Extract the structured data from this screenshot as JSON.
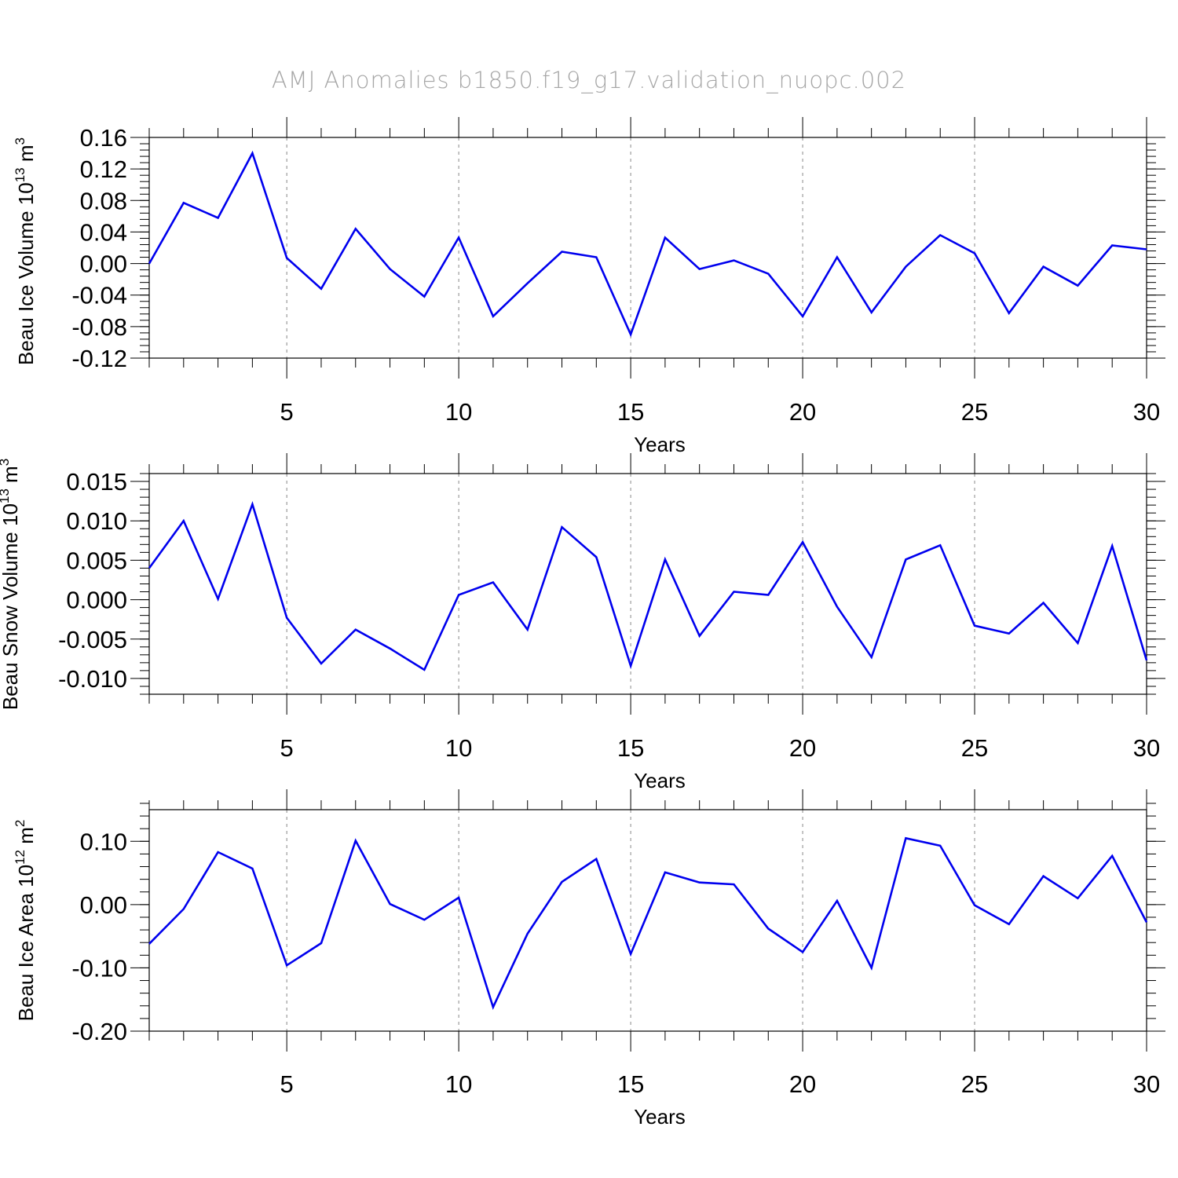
{
  "title": "AMJ Anomalies b1850.f19_g17.validation_nuopc.002",
  "colors": {
    "line": "#0000ee",
    "axes": "#000000",
    "grid": "#888888",
    "title": "#a6a6a6"
  },
  "chart_data": [
    {
      "type": "line",
      "ylabel": {
        "text": "Beau Ice Volume 10",
        "exp": "13",
        "unit": " m",
        "unit_exp": "3"
      },
      "xlabel": "Years",
      "xlim": [
        1,
        30
      ],
      "ylim": [
        -0.12,
        0.16
      ],
      "xticks": [
        5,
        10,
        15,
        20,
        25,
        30
      ],
      "yticks": [
        -0.12,
        -0.08,
        -0.04,
        0.0,
        0.04,
        0.08,
        0.12,
        0.16
      ],
      "ytick_labels": [
        "-0.12",
        "-0.08",
        "-0.04",
        "0.00",
        "0.04",
        "0.08",
        "0.12",
        "0.16"
      ],
      "grid": "vertical dashed at major x ticks",
      "x": [
        1,
        2,
        3,
        4,
        5,
        6,
        7,
        8,
        9,
        10,
        11,
        12,
        13,
        14,
        15,
        16,
        17,
        18,
        19,
        20,
        21,
        22,
        23,
        24,
        25,
        26,
        27,
        28,
        29,
        30
      ],
      "y": [
        0.0,
        0.077,
        0.058,
        0.14,
        0.007,
        -0.032,
        0.044,
        -0.007,
        -0.042,
        0.033,
        -0.067,
        -0.025,
        0.015,
        0.008,
        -0.09,
        0.033,
        -0.007,
        0.004,
        -0.013,
        -0.067,
        0.008,
        -0.062,
        -0.004,
        0.036,
        0.013,
        -0.063,
        -0.004,
        -0.028,
        0.023,
        0.018
      ]
    },
    {
      "type": "line",
      "ylabel": {
        "text": "Beau Snow Volume 10",
        "exp": "13",
        "unit": " m",
        "unit_exp": "3"
      },
      "xlabel": "Years",
      "xlim": [
        1,
        30
      ],
      "ylim": [
        -0.012,
        0.016
      ],
      "xticks": [
        5,
        10,
        15,
        20,
        25,
        30
      ],
      "yticks": [
        -0.01,
        -0.005,
        0.0,
        0.005,
        0.01,
        0.015
      ],
      "ytick_labels": [
        "-0.010",
        "-0.005",
        "0.000",
        "0.005",
        "0.010",
        "0.015"
      ],
      "grid": "vertical dashed at major x ticks",
      "x": [
        1,
        2,
        3,
        4,
        5,
        6,
        7,
        8,
        9,
        10,
        11,
        12,
        13,
        14,
        15,
        16,
        17,
        18,
        19,
        20,
        21,
        22,
        23,
        24,
        25,
        26,
        27,
        28,
        29,
        30
      ],
      "y": [
        0.004,
        0.01,
        0.0001,
        0.0121,
        -0.0023,
        -0.0081,
        -0.0038,
        -0.0062,
        -0.0089,
        0.0006,
        0.0022,
        -0.0038,
        0.0092,
        0.0054,
        -0.0084,
        0.0051,
        -0.0046,
        0.001,
        0.0006,
        0.0073,
        -0.0009,
        -0.0073,
        0.0051,
        0.0069,
        -0.0033,
        -0.0043,
        -0.0004,
        -0.0055,
        0.0068,
        -0.0077
      ]
    },
    {
      "type": "line",
      "ylabel": {
        "text": "Beau Ice Area 10",
        "exp": "12",
        "unit": " m",
        "unit_exp": "2"
      },
      "xlabel": "Years",
      "xlim": [
        1,
        30
      ],
      "ylim": [
        -0.2,
        0.15
      ],
      "xticks": [
        5,
        10,
        15,
        20,
        25,
        30
      ],
      "yticks": [
        -0.2,
        -0.1,
        0.0,
        0.1
      ],
      "ytick_labels": [
        "-0.20",
        "-0.10",
        "0.00",
        "0.10"
      ],
      "grid": "vertical dashed at major x ticks",
      "x": [
        1,
        2,
        3,
        4,
        5,
        6,
        7,
        8,
        9,
        10,
        11,
        12,
        13,
        14,
        15,
        16,
        17,
        18,
        19,
        20,
        21,
        22,
        23,
        24,
        25,
        26,
        27,
        28,
        29,
        30
      ],
      "y": [
        -0.062,
        -0.007,
        0.083,
        0.057,
        -0.096,
        -0.061,
        0.101,
        0.001,
        -0.024,
        0.011,
        -0.162,
        -0.046,
        0.036,
        0.072,
        -0.078,
        0.051,
        0.035,
        0.032,
        -0.038,
        -0.075,
        0.006,
        -0.1,
        0.105,
        0.093,
        -0.001,
        -0.031,
        0.045,
        0.01,
        0.077,
        -0.028
      ]
    }
  ]
}
